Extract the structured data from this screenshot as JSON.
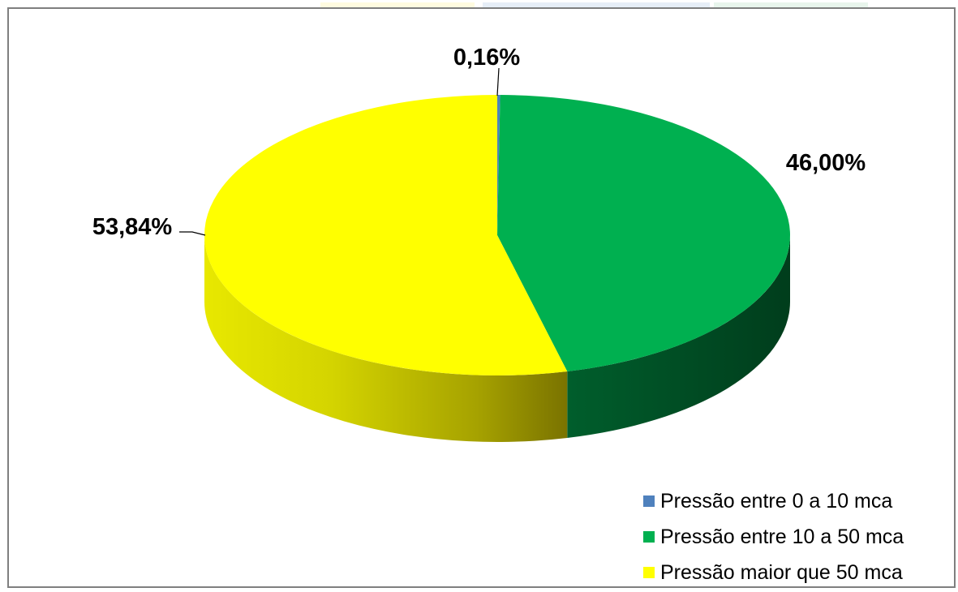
{
  "chart_data": {
    "type": "pie",
    "style": "3d",
    "series": [
      {
        "slices": [
          {
            "label": "Pressão entre 0 a 10 mca",
            "value": 0.16,
            "data_label": "0,16%",
            "color": "#4f81bd"
          },
          {
            "label": "Pressão entre 10 a 50 mca",
            "value": 46.0,
            "data_label": "46,00%",
            "color": "#00b050"
          },
          {
            "label": "Pressão maior que 50 mca",
            "value": 53.84,
            "data_label": "53,84%",
            "color": "#ffff00"
          }
        ]
      }
    ],
    "legend": {
      "position": "bottom-right"
    }
  }
}
